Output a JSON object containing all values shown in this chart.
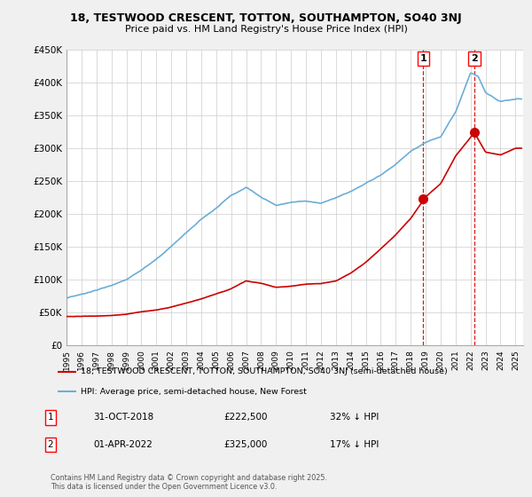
{
  "title1": "18, TESTWOOD CRESCENT, TOTTON, SOUTHAMPTON, SO40 3NJ",
  "title2": "Price paid vs. HM Land Registry's House Price Index (HPI)",
  "ylim": [
    0,
    450000
  ],
  "yticks": [
    0,
    50000,
    100000,
    150000,
    200000,
    250000,
    300000,
    350000,
    400000,
    450000
  ],
  "ytick_labels": [
    "£0",
    "£50K",
    "£100K",
    "£150K",
    "£200K",
    "£250K",
    "£300K",
    "£350K",
    "£400K",
    "£450K"
  ],
  "xlim_start": 1995.0,
  "xlim_end": 2025.5,
  "line_color_hpi": "#6baed6",
  "line_color_price": "#cc0000",
  "transaction1_x": 2018.833,
  "transaction1_y": 222500,
  "transaction2_x": 2022.25,
  "transaction2_y": 325000,
  "legend_label_price": "18, TESTWOOD CRESCENT, TOTTON, SOUTHAMPTON, SO40 3NJ (semi-detached house)",
  "legend_label_hpi": "HPI: Average price, semi-detached house, New Forest",
  "point1_label": "31-OCT-2018",
  "point1_price": "£222,500",
  "point1_pct": "32% ↓ HPI",
  "point2_label": "01-APR-2022",
  "point2_price": "£325,000",
  "point2_pct": "17% ↓ HPI",
  "footer": "Contains HM Land Registry data © Crown copyright and database right 2025.\nThis data is licensed under the Open Government Licence v3.0.",
  "background_color": "#f0f0f0",
  "plot_bg_color": "#ffffff",
  "hpi_anchors_x": [
    1995,
    1996,
    1997,
    1998,
    1999,
    2000,
    2001,
    2002,
    2003,
    2004,
    2005,
    2006,
    2007,
    2008,
    2009,
    2010,
    2011,
    2012,
    2013,
    2014,
    2015,
    2016,
    2017,
    2018,
    2019,
    2020,
    2021,
    2022,
    2022.5,
    2023,
    2024,
    2025
  ],
  "hpi_anchors_y": [
    72000,
    76000,
    82000,
    90000,
    100000,
    115000,
    130000,
    148000,
    168000,
    188000,
    205000,
    225000,
    238000,
    222000,
    210000,
    215000,
    218000,
    215000,
    222000,
    232000,
    245000,
    258000,
    275000,
    295000,
    310000,
    318000,
    355000,
    415000,
    410000,
    385000,
    372000,
    375000
  ],
  "price_anchors_x": [
    1995,
    1996,
    1997,
    1998,
    1999,
    2000,
    2001,
    2002,
    2003,
    2004,
    2005,
    2006,
    2007,
    2008,
    2009,
    2010,
    2011,
    2012,
    2013,
    2014,
    2015,
    2016,
    2017,
    2018,
    2018.833,
    2019,
    2020,
    2021,
    2022.25,
    2023,
    2024,
    2025
  ],
  "price_anchors_y": [
    44000,
    44500,
    45000,
    46000,
    48000,
    52000,
    55000,
    60000,
    66000,
    72000,
    80000,
    88000,
    100000,
    96000,
    90000,
    92000,
    95000,
    96000,
    100000,
    112000,
    128000,
    148000,
    170000,
    195000,
    222500,
    228000,
    248000,
    290000,
    325000,
    295000,
    290000,
    300000
  ]
}
